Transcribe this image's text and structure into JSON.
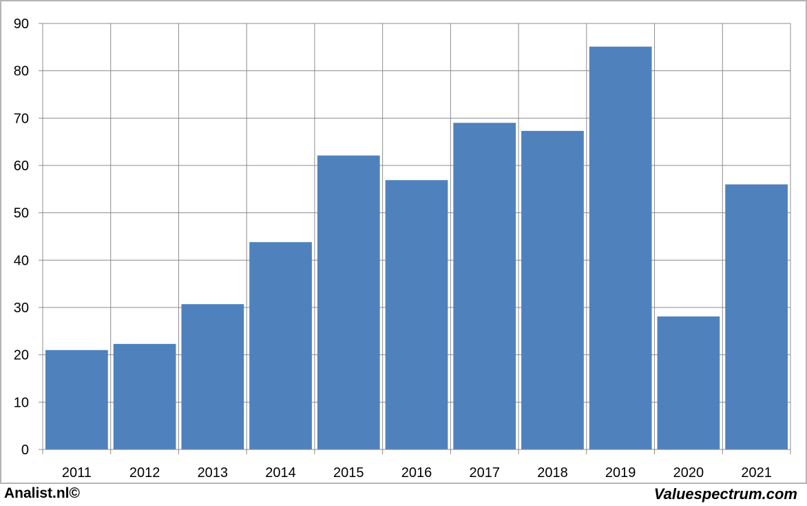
{
  "chart_data": {
    "type": "bar",
    "categories": [
      "2011",
      "2012",
      "2013",
      "2014",
      "2015",
      "2016",
      "2017",
      "2018",
      "2019",
      "2020",
      "2021"
    ],
    "values": [
      21,
      22.3,
      30.7,
      43.8,
      62.1,
      56.9,
      69,
      67.3,
      85.1,
      28.1,
      56
    ],
    "yticks": [
      "0",
      "10",
      "20",
      "30",
      "40",
      "50",
      "60",
      "70",
      "80",
      "90"
    ],
    "ylim": [
      0,
      90
    ],
    "grid": true,
    "title": "",
    "xlabel": "",
    "ylabel": ""
  },
  "colors": {
    "bar": "#4F81BD",
    "grid": "#8C8C8C",
    "frame": "#B4B4B4"
  },
  "footer": {
    "left": "Analist.nl©",
    "right": "Valuespectrum.com"
  }
}
